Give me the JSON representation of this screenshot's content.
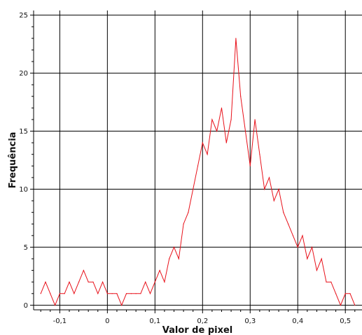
{
  "chart_data": {
    "type": "line",
    "title": "",
    "xlabel": "Valor de pixel",
    "ylabel": "Frequência",
    "xlim": [
      -0.155,
      0.535
    ],
    "ylim": [
      -0.4,
      25.4
    ],
    "grid": true,
    "legend": "none",
    "series_color": "#e8111a",
    "x_ticks": [
      {
        "value": -0.1,
        "label": "-0,1"
      },
      {
        "value": 0,
        "label": "0"
      },
      {
        "value": 0.1,
        "label": "0,1"
      },
      {
        "value": 0.2,
        "label": "0,2"
      },
      {
        "value": 0.3,
        "label": "0,3"
      },
      {
        "value": 0.4,
        "label": "0,4"
      },
      {
        "value": 0.5,
        "label": "0,5"
      }
    ],
    "y_ticks": [
      {
        "value": 0,
        "label": "0"
      },
      {
        "value": 5,
        "label": "5"
      },
      {
        "value": 10,
        "label": "10"
      },
      {
        "value": 15,
        "label": "15"
      },
      {
        "value": 20,
        "label": "20"
      },
      {
        "value": 25,
        "label": "25"
      }
    ],
    "series": [
      {
        "x": [
          -0.14,
          -0.13,
          -0.12,
          -0.11,
          -0.1,
          -0.09,
          -0.08,
          -0.07,
          -0.06,
          -0.05,
          -0.04,
          -0.03,
          -0.02,
          -0.01,
          0.0,
          0.01,
          0.02,
          0.03,
          0.04,
          0.05,
          0.06,
          0.07,
          0.08,
          0.09,
          0.1,
          0.11,
          0.12,
          0.13,
          0.14,
          0.15,
          0.16,
          0.17,
          0.18,
          0.19,
          0.2,
          0.21,
          0.22,
          0.23,
          0.24,
          0.25,
          0.26,
          0.27,
          0.28,
          0.29,
          0.3,
          0.31,
          0.32,
          0.33,
          0.34,
          0.35,
          0.36,
          0.37,
          0.38,
          0.39,
          0.4,
          0.41,
          0.42,
          0.43,
          0.44,
          0.45,
          0.46,
          0.47,
          0.48,
          0.49,
          0.5,
          0.51,
          0.52
        ],
        "y": [
          1,
          2,
          1,
          0,
          1,
          1,
          2,
          1,
          2,
          3,
          2,
          2,
          1,
          2,
          1,
          1,
          1,
          0,
          1,
          1,
          1,
          1,
          2,
          1,
          2,
          3,
          2,
          4,
          5,
          4,
          7,
          8,
          10,
          12,
          14,
          13,
          16,
          15,
          17,
          14,
          16,
          23,
          18,
          15,
          12,
          16,
          13,
          10,
          11,
          9,
          10,
          8,
          7,
          6,
          5,
          6,
          4,
          5,
          3,
          4,
          2,
          2,
          1,
          0,
          1,
          1,
          0
        ]
      }
    ]
  }
}
